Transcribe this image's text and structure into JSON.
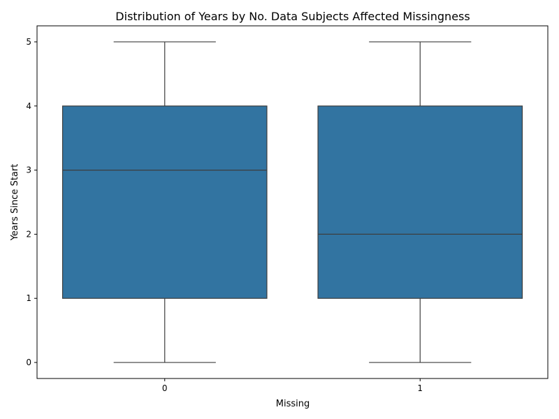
{
  "chart_data": {
    "type": "box",
    "title": "Distribution of Years by No. Data Subjects Affected Missingness",
    "xlabel": "Missing",
    "ylabel": "Years Since Start",
    "categories": [
      "0",
      "1"
    ],
    "ylim": [
      -0.25,
      5.25
    ],
    "yticks": [
      0,
      1,
      2,
      3,
      4,
      5
    ],
    "yticklabels": [
      "0",
      "1",
      "2",
      "3",
      "4",
      "5"
    ],
    "boxes": [
      {
        "category": "0",
        "whisker_low": 0,
        "q1": 1,
        "median": 3,
        "q3": 4,
        "whisker_high": 5
      },
      {
        "category": "1",
        "whisker_low": 0,
        "q1": 1,
        "median": 2,
        "q3": 4,
        "whisker_high": 5
      }
    ],
    "colors": {
      "box_fill": "#3274a1",
      "line": "#3d3d3d",
      "axes": "#000000"
    }
  }
}
